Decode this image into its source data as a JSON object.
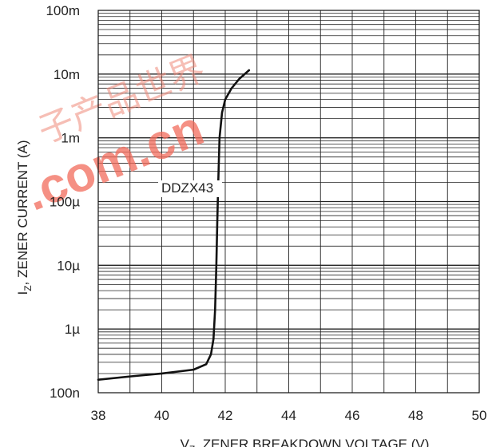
{
  "chart_data": {
    "type": "line",
    "title": "",
    "xlabel": "V_Z, ZENER BREAKDOWN VOLTAGE (V)",
    "xlabel_main": "V",
    "xlabel_sub": "Z",
    "xlabel_rest": ", ZENER BREAKDOWN VOLTAGE (V)",
    "ylabel": "I_Z, ZENER CURRENT (A)",
    "ylabel_main": "I",
    "ylabel_sub": "Z",
    "ylabel_rest": ", ZENER CURRENT (A)",
    "xlim": [
      38,
      50
    ],
    "ylim": [
      1e-07,
      0.1
    ],
    "yscale": "log",
    "grid": true,
    "x_ticks": [
      38,
      40,
      42,
      44,
      46,
      48,
      50
    ],
    "x_tick_labels": [
      "38",
      "40",
      "42",
      "44",
      "46",
      "48",
      "50"
    ],
    "y_ticks": [
      1e-07,
      1e-06,
      1e-05,
      0.0001,
      0.001,
      0.01,
      0.1
    ],
    "y_tick_labels": [
      "100n",
      "1µ",
      "10µ",
      "100µ",
      "1m",
      "10m",
      "100m"
    ],
    "annotation": "DDZX43",
    "series": [
      {
        "name": "",
        "x": [
          38.0,
          39.0,
          40.0,
          41.0,
          41.4,
          41.55,
          41.63,
          41.68,
          41.72,
          41.75,
          41.78,
          41.82,
          41.9,
          42.0,
          42.2,
          42.45,
          42.75
        ],
        "y": [
          1.6e-07,
          1.8e-07,
          2e-07,
          2.3e-07,
          2.8e-07,
          4e-07,
          7e-07,
          2e-06,
          1e-05,
          5e-05,
          0.0002,
          0.001,
          0.0025,
          0.004,
          0.006,
          0.0085,
          0.0115
        ]
      }
    ],
    "watermark": ".com.cn",
    "watermark_cn": "子产品世界"
  }
}
